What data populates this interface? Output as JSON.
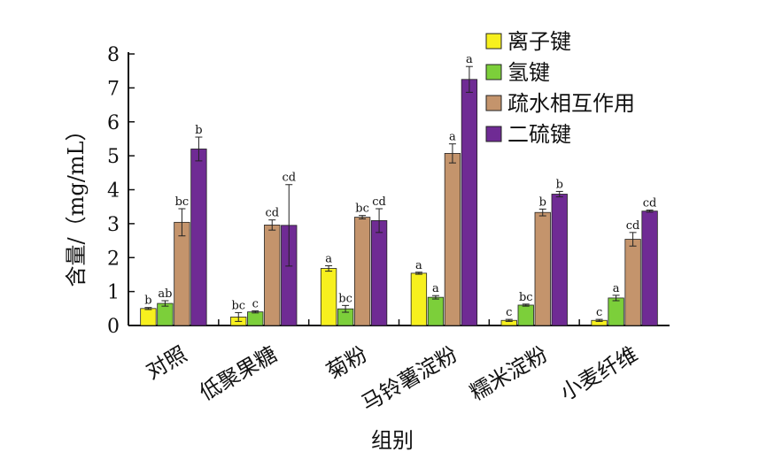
{
  "chart_data": {
    "type": "bar",
    "xlabel": "组别",
    "ylabel": "含量/（mg/mL）",
    "ylim": [
      0,
      8
    ],
    "yticks": [
      0,
      1,
      2,
      3,
      4,
      5,
      6,
      7,
      8
    ],
    "categories": [
      "对照",
      "低聚果糖",
      "菊粉",
      "马铃薯淀粉",
      "糯米淀粉",
      "小麦纤维"
    ],
    "series": [
      {
        "name": "离子键",
        "color": "#f7f01e",
        "values": [
          0.5,
          0.25,
          1.68,
          1.54,
          0.15,
          0.15
        ],
        "errors": [
          0.03,
          0.13,
          0.08,
          0.03,
          0.03,
          0.03
        ],
        "labels": [
          "b",
          "bc",
          "a",
          "a",
          "c",
          "c"
        ]
      },
      {
        "name": "氢键",
        "color": "#7ccf3a",
        "values": [
          0.65,
          0.4,
          0.49,
          0.83,
          0.6,
          0.81
        ],
        "errors": [
          0.08,
          0.03,
          0.1,
          0.05,
          0.03,
          0.08
        ],
        "labels": [
          "ab",
          "c",
          "bc",
          "a",
          "bc",
          "a"
        ]
      },
      {
        "name": "疏水相互作用",
        "color": "#c4946c",
        "values": [
          3.04,
          2.96,
          3.19,
          5.07,
          3.33,
          2.54
        ],
        "errors": [
          0.4,
          0.15,
          0.05,
          0.28,
          0.1,
          0.2
        ],
        "labels": [
          "bc",
          "cd",
          "bc",
          "a",
          "b",
          "cd"
        ]
      },
      {
        "name": "二硫键",
        "color": "#6f2b94",
        "values": [
          5.2,
          2.95,
          3.09,
          7.25,
          3.87,
          3.37
        ],
        "errors": [
          0.35,
          1.2,
          0.35,
          0.38,
          0.08,
          0.03
        ],
        "labels": [
          "b",
          "cd",
          "cd",
          "a",
          "b",
          "cd"
        ]
      }
    ],
    "legend_position": "top-right",
    "grid": false
  }
}
